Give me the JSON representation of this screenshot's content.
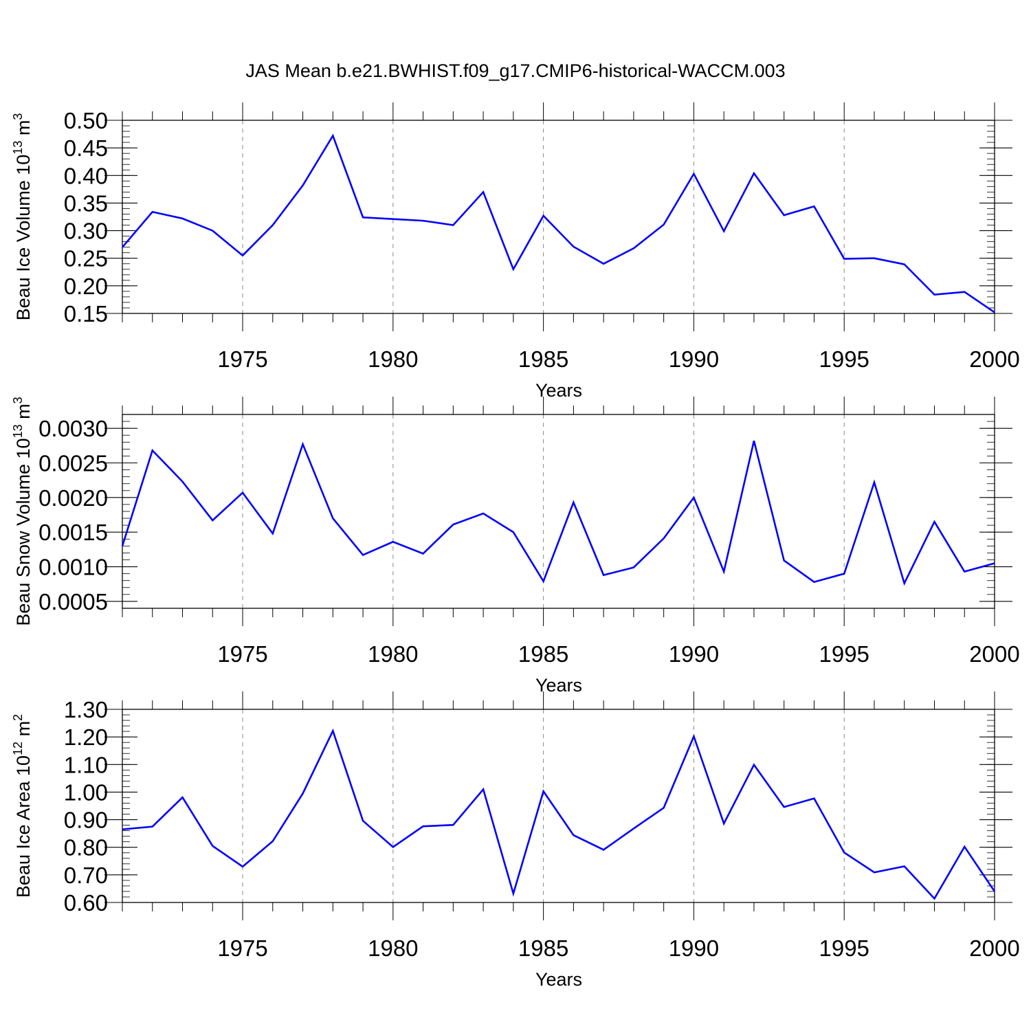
{
  "title": "JAS Mean b.e21.BWHIST.f09_g17.CMIP6-historical-WACCM.003",
  "line_color": "#0000ff",
  "years": [
    1971,
    1972,
    1973,
    1974,
    1975,
    1976,
    1977,
    1978,
    1979,
    1980,
    1981,
    1982,
    1983,
    1984,
    1985,
    1986,
    1987,
    1988,
    1989,
    1990,
    1991,
    1992,
    1993,
    1994,
    1995,
    1996,
    1997,
    1998,
    1999,
    2000
  ],
  "chart_data": [
    {
      "type": "line",
      "ylabel": "Beau Ice Volume 10",
      "ylabel_exp": "13",
      "ylabel_unit": " m",
      "ylabel_unit_exp": "3",
      "xlabel": "Years",
      "xlim": [
        1971,
        2000
      ],
      "ylim": [
        0.15,
        0.5
      ],
      "yticks": [
        0.15,
        0.2,
        0.25,
        0.3,
        0.35,
        0.4,
        0.45,
        0.5
      ],
      "ytick_labels": [
        "0.15",
        "0.20",
        "0.25",
        "0.30",
        "0.35",
        "0.40",
        "0.45",
        "0.50"
      ],
      "xticks": [
        1975,
        1980,
        1985,
        1990,
        1995,
        2000
      ],
      "xtick_labels": [
        "1975",
        "1980",
        "1985",
        "1990",
        "1995",
        "2000"
      ],
      "values": [
        0.27,
        0.334,
        0.322,
        0.3,
        0.255,
        0.31,
        0.382,
        0.472,
        0.324,
        0.321,
        0.318,
        0.31,
        0.37,
        0.23,
        0.327,
        0.271,
        0.24,
        0.268,
        0.311,
        0.403,
        0.299,
        0.404,
        0.328,
        0.344,
        0.249,
        0.25,
        0.239,
        0.184,
        0.189,
        0.152
      ]
    },
    {
      "type": "line",
      "ylabel": "Beau Snow Volume 10",
      "ylabel_exp": "13",
      "ylabel_unit": " m",
      "ylabel_unit_exp": "3",
      "xlabel": "Years",
      "xlim": [
        1971,
        2000
      ],
      "ylim": [
        0.0004,
        0.0032
      ],
      "yticks": [
        0.0005,
        0.001,
        0.0015,
        0.002,
        0.0025,
        0.003
      ],
      "ytick_labels": [
        "0.0005",
        "0.0010",
        "0.0015",
        "0.0020",
        "0.0025",
        "0.0030"
      ],
      "xticks": [
        1975,
        1980,
        1985,
        1990,
        1995,
        2000
      ],
      "xtick_labels": [
        "1975",
        "1980",
        "1985",
        "1990",
        "1995",
        "2000"
      ],
      "values": [
        0.0013,
        0.00268,
        0.00223,
        0.00167,
        0.00207,
        0.00148,
        0.00277,
        0.0017,
        0.00117,
        0.00136,
        0.00119,
        0.00161,
        0.00177,
        0.0015,
        0.00079,
        0.00193,
        0.00088,
        0.00099,
        0.00141,
        0.002,
        0.00093,
        0.00282,
        0.00109,
        0.00078,
        0.0009,
        0.00222,
        0.00076,
        0.00165,
        0.00093,
        0.00105
      ]
    },
    {
      "type": "line",
      "ylabel": "Beau Ice Area 10",
      "ylabel_exp": "12",
      "ylabel_unit": " m",
      "ylabel_unit_exp": "2",
      "xlabel": "Years",
      "xlim": [
        1971,
        2000
      ],
      "ylim": [
        0.6,
        1.3
      ],
      "yticks": [
        0.6,
        0.7,
        0.8,
        0.9,
        1.0,
        1.1,
        1.2,
        1.3
      ],
      "ytick_labels": [
        "0.60",
        "0.70",
        "0.80",
        "0.90",
        "1.00",
        "1.10",
        "1.20",
        "1.30"
      ],
      "xticks": [
        1975,
        1980,
        1985,
        1990,
        1995,
        2000
      ],
      "xtick_labels": [
        "1975",
        "1980",
        "1985",
        "1990",
        "1995",
        "2000"
      ],
      "values": [
        0.865,
        0.875,
        0.981,
        0.805,
        0.73,
        0.822,
        0.995,
        1.222,
        0.896,
        0.801,
        0.876,
        0.881,
        1.01,
        0.632,
        1.003,
        0.844,
        0.791,
        0.868,
        0.943,
        1.202,
        0.886,
        1.099,
        0.946,
        0.977,
        0.781,
        0.709,
        0.731,
        0.614,
        0.802,
        0.64
      ]
    }
  ]
}
